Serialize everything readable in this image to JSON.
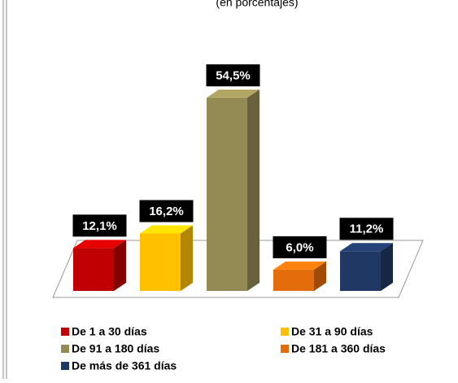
{
  "chart_data": {
    "type": "bar3d",
    "subtitle": "(en porcentajes)",
    "categories": [
      "De 1 a 30 días",
      "De 31 a 90 días",
      "De 91 a 180 días",
      "De 181 a 360 días",
      "De más de 361 días"
    ],
    "values": [
      12.1,
      16.2,
      54.5,
      6.0,
      11.2
    ],
    "value_labels": [
      "12,1%",
      "16,2%",
      "54,5%",
      "6,0%",
      "11,2%"
    ],
    "colors": [
      "#c00000",
      "#ffc000",
      "#948a54",
      "#e46c0a",
      "#1f3864"
    ],
    "legend": "bottom"
  }
}
